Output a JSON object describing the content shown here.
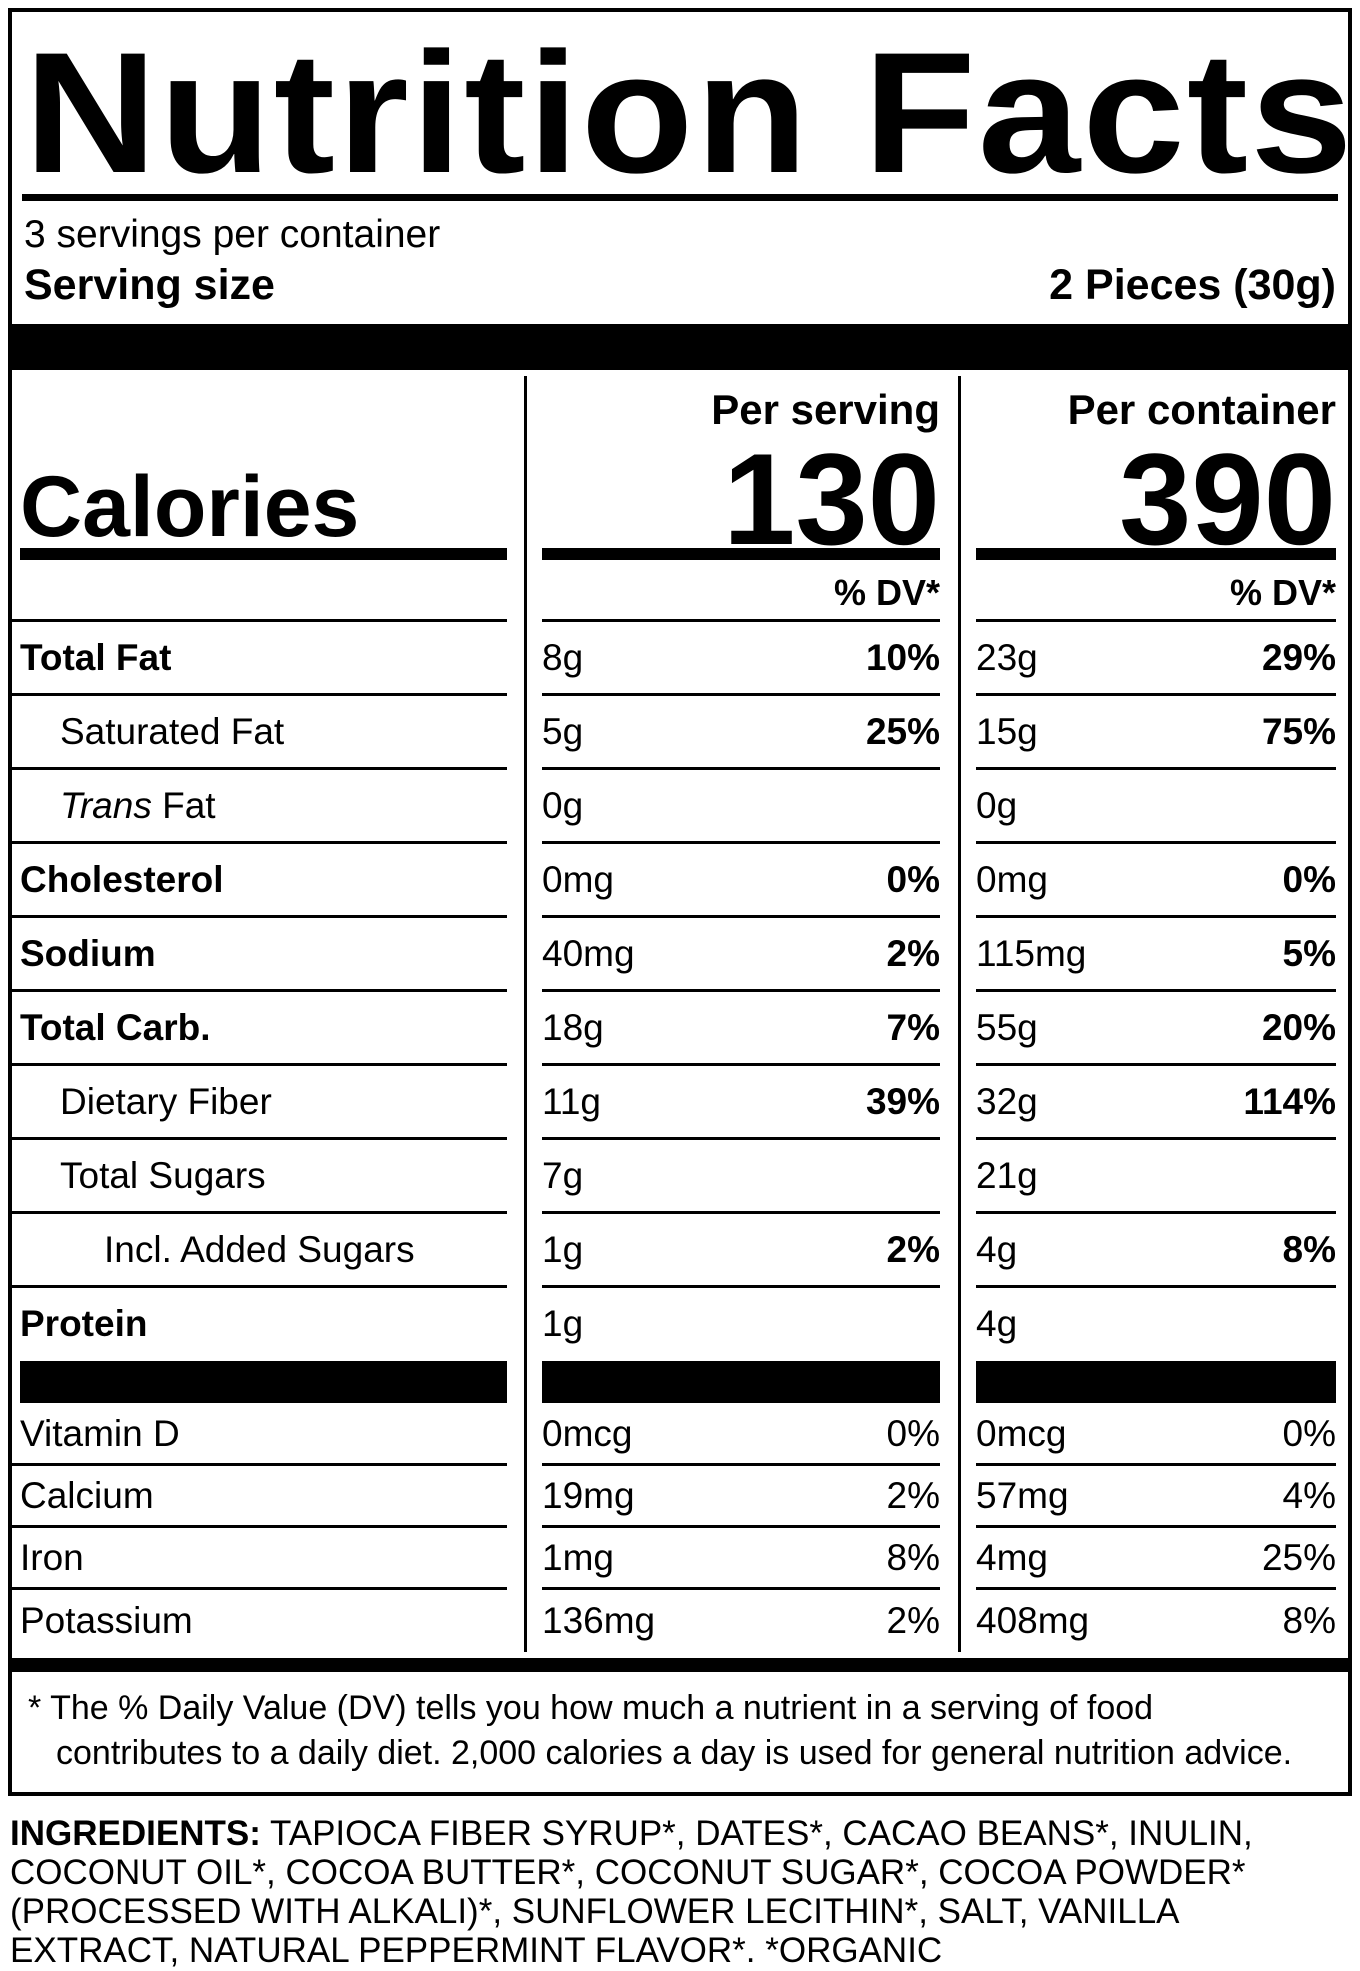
{
  "colors": {
    "ink": "#000000",
    "paper": "#ffffff"
  },
  "header": {
    "title": "Nutrition Facts",
    "servings_per_container": "3 servings per container",
    "serving_size_label": "Serving size",
    "serving_size_value": "2 Pieces (30g)"
  },
  "calories": {
    "label": "Calories",
    "per_serving_header": "Per serving",
    "per_container_header": "Per container",
    "per_serving_value": "130",
    "per_container_value": "390",
    "dv_header_serving": "% DV*",
    "dv_header_container": "% DV*"
  },
  "nutrients": [
    {
      "name": "Total Fat",
      "ps_amount": "8g",
      "ps_dv": "10%",
      "pc_amount": "23g",
      "pc_dv": "29%"
    },
    {
      "name": "Saturated Fat",
      "ps_amount": "5g",
      "ps_dv": "25%",
      "pc_amount": "15g",
      "pc_dv": "75%"
    },
    {
      "name_italic": "Trans",
      "name_rest": " Fat",
      "ps_amount": "0g",
      "ps_dv": "",
      "pc_amount": "0g",
      "pc_dv": ""
    },
    {
      "name": "Cholesterol",
      "ps_amount": "0mg",
      "ps_dv": "0%",
      "pc_amount": "0mg",
      "pc_dv": "0%"
    },
    {
      "name": "Sodium",
      "ps_amount": "40mg",
      "ps_dv": "2%",
      "pc_amount": "115mg",
      "pc_dv": "5%"
    },
    {
      "name": "Total Carb.",
      "ps_amount": "18g",
      "ps_dv": "7%",
      "pc_amount": "55g",
      "pc_dv": "20%"
    },
    {
      "name": "Dietary Fiber",
      "ps_amount": "11g",
      "ps_dv": "39%",
      "pc_amount": "32g",
      "pc_dv": "114%"
    },
    {
      "name": "Total Sugars",
      "ps_amount": "7g",
      "ps_dv": "",
      "pc_amount": "21g",
      "pc_dv": ""
    },
    {
      "name": "Incl. Added Sugars",
      "ps_amount": "1g",
      "ps_dv": "2%",
      "pc_amount": "4g",
      "pc_dv": "8%"
    },
    {
      "name": "Protein",
      "ps_amount": "1g",
      "ps_dv": "",
      "pc_amount": "4g",
      "pc_dv": ""
    }
  ],
  "micronutrients": [
    {
      "name": "Vitamin D",
      "ps_amount": "0mcg",
      "ps_dv": "0%",
      "pc_amount": "0mcg",
      "pc_dv": "0%"
    },
    {
      "name": "Calcium",
      "ps_amount": "19mg",
      "ps_dv": "2%",
      "pc_amount": "57mg",
      "pc_dv": "4%"
    },
    {
      "name": "Iron",
      "ps_amount": "1mg",
      "ps_dv": "8%",
      "pc_amount": "4mg",
      "pc_dv": "25%"
    },
    {
      "name": "Potassium",
      "ps_amount": "136mg",
      "ps_dv": "2%",
      "pc_amount": "408mg",
      "pc_dv": "8%"
    }
  ],
  "footnote": "* The % Daily Value (DV) tells you how much a nutrient in a serving of food contributes to a daily diet. 2,000 calories a day is used for general nutrition advice.",
  "ingredients": {
    "label": "INGREDIENTS:",
    "text": " TAPIOCA FIBER SYRUP*, DATES*, CACAO BEANS*, INULIN, COCONUT OIL*, COCOA BUTTER*, COCONUT SUGAR*, COCOA POWDER* (PROCESSED WITH ALKALI)*, SUNFLOWER LECITHIN*, SALT, VANILLA EXTRACT, NATURAL PEPPERMINT FLAVOR*. *ORGANIC"
  }
}
